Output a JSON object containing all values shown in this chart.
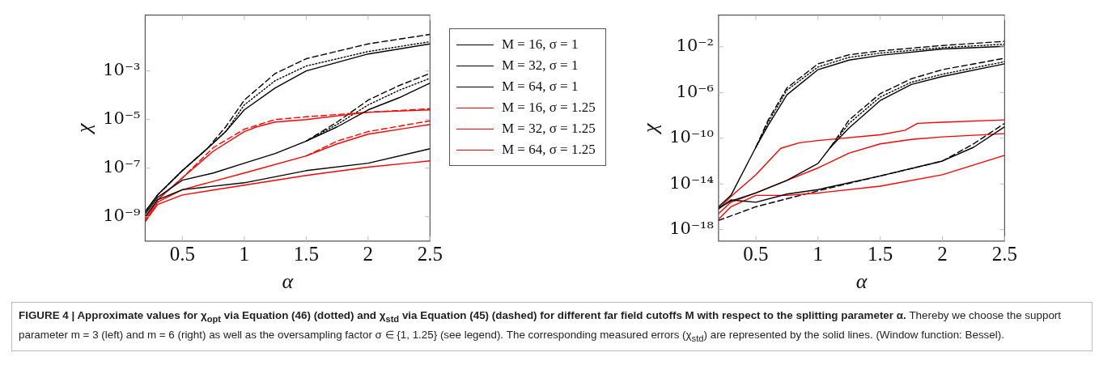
{
  "chart_data": [
    {
      "type": "line",
      "xlabel": "α",
      "ylabel": "χ",
      "log": "y",
      "marker": "none",
      "legend": "right",
      "grid": false,
      "xlim": [
        0.2,
        2.5
      ],
      "xticks": [
        0.5,
        1,
        1.5,
        2,
        2.5
      ],
      "ylim": [
        1e-10,
        0.2
      ],
      "yticks": [
        {
          "value": 1e-09,
          "label": "10⁻⁹"
        },
        {
          "value": 1e-07,
          "label": "10⁻⁷"
        },
        {
          "value": 1e-05,
          "label": "10⁻⁵"
        },
        {
          "value": 0.001,
          "label": "10⁻³"
        }
      ],
      "annotations": [
        "FIGURE 4 | Approximate values for χ$_{opt}$ via Equation (46) (dotted) and χ$_{std}$ via Equation (45) (dashed) for different far field cutoffs M with respect to the splitting parameter α.",
        "Thereby we choose the support parameter m = 3 (left) and m = 6 (right) as well as the oversampling factor σ ∈ {1, 1.25} (see legend). The corresponding measured errors (χ$_{std}$) are represented by the solid lines. (Window function: Bessel)."
      ],
      "series": [
        {
          "name": "M = 16, σ = 1",
          "color": "#000000",
          "line_style": "solid",
          "x": [
            0.2,
            0.3,
            0.5,
            0.7,
            0.85,
            1,
            1.25,
            1.5,
            2,
            2.5
          ],
          "values": [
            1.6e-09,
            7.9e-09,
            7.9e-08,
            6.3e-07,
            3.2e-06,
            2.5e-05,
            0.0002,
            0.001,
            0.005,
            0.013
          ]
        },
        {
          "name": "M = 32, σ = 1",
          "color": "#000000",
          "line_style": "solid",
          "x": [
            0.2,
            0.3,
            0.5,
            0.75,
            1,
            1.25,
            1.5,
            1.75,
            2,
            2.25,
            2.5
          ],
          "values": [
            1.3e-09,
            6.3e-09,
            3.2e-08,
            6.3e-08,
            1.6e-07,
            4e-07,
            1.3e-06,
            5e-06,
            2.5e-05,
            7.9e-05,
            0.00032
          ]
        },
        {
          "name": "M = 64, σ = 1",
          "color": "#000000",
          "line_style": "solid",
          "x": [
            0.2,
            0.3,
            0.5,
            1,
            1.5,
            2,
            2.5
          ],
          "values": [
            1e-09,
            5e-09,
            1.3e-08,
            2.5e-08,
            7.9e-08,
            1.6e-07,
            6.3e-07
          ]
        },
        {
          "name": "M = 16, σ = 1.25",
          "color": "#ff0000",
          "line_style": "solid",
          "x": [
            0.2,
            0.3,
            0.5,
            0.75,
            1,
            1.1,
            1.25,
            1.5,
            2,
            2.5
          ],
          "values": [
            7.9e-10,
            5e-09,
            4e-08,
            5e-07,
            3.2e-06,
            5e-06,
            7.9e-06,
            1e-05,
            2e-05,
            2.5e-05
          ]
        },
        {
          "name": "M = 32, σ = 1.25",
          "color": "#ff0000",
          "line_style": "solid",
          "x": [
            0.2,
            0.3,
            0.5,
            1,
            1.5,
            1.75,
            2,
            2.5
          ],
          "values": [
            6.3e-10,
            4e-09,
            1.3e-08,
            6.3e-08,
            3.2e-07,
            1e-06,
            2.5e-06,
            6.3e-06
          ]
        },
        {
          "name": "M = 64, σ = 1.25",
          "color": "#ff0000",
          "line_style": "solid",
          "x": [
            0.2,
            0.3,
            0.5,
            1,
            1.5,
            2,
            2.5
          ],
          "values": [
            6.3e-10,
            3.2e-09,
            7.9e-09,
            2e-08,
            5e-08,
            1.1e-07,
            2e-07
          ]
        },
        {
          "color": "#000000",
          "line_style": "dotted",
          "x": [
            0.2,
            0.3,
            0.5,
            0.7,
            0.85,
            1,
            1.25,
            1.5,
            2,
            2.5
          ],
          "values": [
            1.6e-09,
            7.9e-09,
            7.9e-08,
            6.3e-07,
            3.2e-06,
            4e-05,
            0.0004,
            0.0016,
            0.0063,
            0.016
          ]
        },
        {
          "color": "#000000",
          "line_style": "dashed",
          "x": [
            0.2,
            0.3,
            0.5,
            0.7,
            0.85,
            1,
            1.25,
            1.5,
            2,
            2.5
          ],
          "values": [
            1.6e-09,
            7.9e-09,
            7.9e-08,
            6.3e-07,
            5e-06,
            6.3e-05,
            0.00079,
            0.0032,
            0.013,
            0.032
          ]
        },
        {
          "color": "#000000",
          "line_style": "dotted",
          "x": [
            1.5,
            1.75,
            2,
            2.25,
            2.5
          ],
          "values": [
            1.3e-06,
            6.3e-06,
            4e-05,
            0.00016,
            0.0005
          ]
        },
        {
          "color": "#000000",
          "line_style": "dashed",
          "x": [
            1.5,
            1.75,
            2,
            2.25,
            2.5
          ],
          "values": [
            1.3e-06,
            7.9e-06,
            6.3e-05,
            0.00025,
            0.00079
          ]
        },
        {
          "color": "#ff0000",
          "line_style": "dashed",
          "x": [
            0.2,
            0.3,
            0.5,
            0.75,
            1,
            1.25,
            1.5,
            2,
            2.5
          ],
          "values": [
            7.9e-10,
            5e-09,
            4e-08,
            7e-07,
            4e-06,
            1e-05,
            1.3e-05,
            2e-05,
            2.8e-05
          ]
        },
        {
          "color": "#ff0000",
          "line_style": "dashed",
          "x": [
            1.5,
            1.75,
            2,
            2.5
          ],
          "values": [
            3.2e-07,
            1.3e-06,
            3.2e-06,
            8.9e-06
          ]
        }
      ]
    },
    {
      "type": "line",
      "xlabel": "α",
      "ylabel": "χ",
      "log": "y",
      "marker": "none",
      "grid": false,
      "xlim": [
        0.2,
        2.5
      ],
      "xticks": [
        0.5,
        1,
        1.5,
        2,
        2.5
      ],
      "ylim": [
        1e-19,
        6
      ],
      "yticks": [
        {
          "value": 1e-18,
          "label": "10⁻¹⁸"
        },
        {
          "value": 1e-14,
          "label": "10⁻¹⁴"
        },
        {
          "value": 1e-10,
          "label": "10⁻¹⁰"
        },
        {
          "value": 1e-06,
          "label": "10⁻⁶"
        },
        {
          "value": 0.01,
          "label": "10⁻²"
        }
      ],
      "series": [
        {
          "color": "#000000",
          "line_style": "solid",
          "x": [
            0.2,
            0.3,
            0.5,
            0.6,
            0.75,
            1,
            1.25,
            1.5,
            2,
            2.5
          ],
          "values": [
            1e-16,
            1e-15,
            1.6e-11,
            1.4e-09,
            6.3e-07,
            0.0001,
            0.00069,
            0.0018,
            0.0065,
            0.011
          ]
        },
        {
          "color": "#000000",
          "line_style": "solid",
          "x": [
            0.2,
            0.3,
            0.5,
            0.75,
            1,
            1.1,
            1.25,
            1.5,
            1.75,
            2,
            2.5
          ],
          "values": [
            7.9e-17,
            3.2e-16,
            1.6e-15,
            2e-14,
            6.3e-13,
            1.6e-11,
            7.9e-10,
            2e-07,
            5e-06,
            2.5e-05,
            0.00032
          ]
        },
        {
          "color": "#000000",
          "line_style": "solid",
          "x": [
            0.2,
            0.3,
            0.5,
            0.75,
            1,
            1.5,
            2,
            2.25,
            2.5
          ],
          "values": [
            6.3e-17,
            4e-16,
            2.5e-16,
            1.3e-15,
            3.2e-15,
            5e-14,
            1e-12,
            1.6e-11,
            1e-09
          ]
        },
        {
          "color": "#ff0000",
          "line_style": "solid",
          "x": [
            0.2,
            0.3,
            0.5,
            0.7,
            0.85,
            1,
            1.5,
            1.7,
            1.8,
            2,
            2.5
          ],
          "values": [
            6.3e-17,
            7.9e-16,
            6.3e-14,
            1.3e-11,
            4e-11,
            6.3e-11,
            2e-10,
            5e-10,
            2e-09,
            2.5e-09,
            4e-09
          ]
        },
        {
          "color": "#ff0000",
          "line_style": "solid",
          "x": [
            0.2,
            0.3,
            0.5,
            0.75,
            1,
            1.25,
            1.5,
            1.75,
            2,
            2.5
          ],
          "values": [
            2.5e-17,
            2.5e-16,
            1.6e-15,
            2e-14,
            2.5e-13,
            5e-12,
            3.2e-11,
            7.9e-11,
            1.3e-10,
            2.5e-10
          ]
        },
        {
          "color": "#ff0000",
          "line_style": "solid",
          "x": [
            0.2,
            0.3,
            0.5,
            0.75,
            1,
            1.5,
            2,
            2.5
          ],
          "values": [
            7.9e-18,
            1e-16,
            1e-15,
            1e-15,
            1.6e-15,
            6.3e-15,
            6.3e-14,
            3.2e-12
          ]
        },
        {
          "color": "#000000",
          "line_style": "dotted",
          "x": [
            0.5,
            0.6,
            0.75,
            1,
            1.25,
            1.5,
            2,
            2.5
          ],
          "values": [
            1.6e-11,
            2.5e-09,
            1.6e-06,
            0.00017,
            0.0012,
            0.0028,
            0.0085,
            0.017
          ]
        },
        {
          "color": "#000000",
          "line_style": "dashed",
          "x": [
            0.5,
            0.6,
            0.75,
            1,
            1.25,
            1.5,
            2,
            2.5
          ],
          "values": [
            1.6e-11,
            4e-09,
            2.5e-06,
            0.00032,
            0.002,
            0.0044,
            0.013,
            0.03
          ]
        },
        {
          "color": "#000000",
          "line_style": "dotted",
          "x": [
            1.1,
            1.25,
            1.5,
            1.75,
            2,
            2.5
          ],
          "values": [
            1.6e-11,
            2e-09,
            4e-07,
            7.9e-06,
            4e-05,
            0.0005
          ]
        },
        {
          "color": "#000000",
          "line_style": "dashed",
          "x": [
            1.1,
            1.25,
            1.5,
            1.75,
            2,
            2.5
          ],
          "values": [
            1.6e-11,
            4e-09,
            7.9e-07,
            1.6e-05,
            0.0001,
            0.001
          ]
        },
        {
          "color": "#000000",
          "line_style": "dashed",
          "x": [
            0.2,
            0.5,
            1,
            1.5,
            2,
            2.25,
            2.5
          ],
          "values": [
            6.3e-18,
            1e-16,
            2.5e-15,
            5e-14,
            1e-12,
            3.2e-11,
            2e-09
          ]
        }
      ]
    }
  ]
}
